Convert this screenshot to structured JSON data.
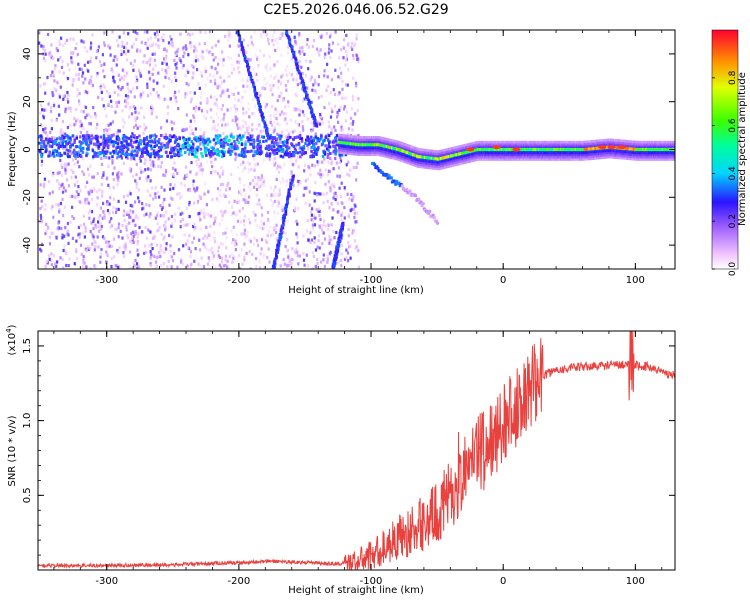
{
  "figure": {
    "title": "C2E5.2026.046.06.52.G29"
  },
  "chart_data": [
    {
      "type": "heatmap",
      "name": "spectrogram",
      "xlabel": "Height of straight line (km)",
      "ylabel": "Frequency (Hz)",
      "xlim": [
        -352,
        130
      ],
      "ylim": [
        -50,
        50
      ],
      "xticks": [
        -300,
        -200,
        -100,
        0,
        100
      ],
      "xtick_labels": [
        "-300",
        "-200",
        "-100",
        "0",
        "100"
      ],
      "yticks": [
        -40,
        -20,
        0,
        20,
        40
      ],
      "ytick_labels": [
        "-40",
        "-20",
        "0",
        "20",
        "40"
      ],
      "colorbar": {
        "label": "Normalized spectral amplitude",
        "range": [
          0,
          1
        ],
        "ticks": [
          0.0,
          0.2,
          0.4,
          0.6,
          0.8
        ],
        "tick_labels": [
          "0.0",
          "0.2",
          "0.4",
          "0.6",
          "0.8"
        ]
      },
      "main_tone": {
        "x": [
          -125,
          -110,
          -95,
          -80,
          -65,
          -50,
          -35,
          -20,
          0,
          20,
          40,
          60,
          80,
          100,
          130
        ],
        "y": [
          3,
          2,
          2,
          0,
          -3,
          -4,
          -2,
          0,
          0,
          0,
          0,
          0,
          1,
          0,
          0
        ],
        "peak_amplitude": 0.95
      },
      "noise_band_center_hz": 2,
      "descending_branch": {
        "x": [
          -100,
          -90,
          -80,
          -70,
          -60,
          -50
        ],
        "y": [
          -5,
          -10,
          -14,
          -18,
          -24,
          -30
        ]
      },
      "streaks": [
        {
          "x": [
            -202,
            -178
          ],
          "y": [
            50,
            5
          ]
        },
        {
          "x": [
            -165,
            -142
          ],
          "y": [
            50,
            10
          ]
        },
        {
          "x": [
            -175,
            -160
          ],
          "y": [
            -50,
            -10
          ]
        },
        {
          "x": [
            -130,
            -122
          ],
          "y": [
            -50,
            -30
          ]
        }
      ]
    },
    {
      "type": "line",
      "name": "snr",
      "xlabel": "Height of straight line (km)",
      "ylabel": "SNR (10 * v/v)",
      "scale_label": "(x10",
      "scale_exponent": "4",
      "xlim": [
        -352,
        130
      ],
      "ylim": [
        0,
        1.6
      ],
      "xticks": [
        -300,
        -200,
        -100,
        0,
        100
      ],
      "xtick_labels": [
        "-300",
        "-200",
        "-100",
        "0",
        "100"
      ],
      "yticks": [
        0.5,
        1.0,
        1.5
      ],
      "ytick_labels": [
        "0.5",
        "1.0",
        "1.5"
      ],
      "series": [
        {
          "name": "SNR",
          "color": "#e8413e",
          "x": [
            -352,
            -300,
            -250,
            -200,
            -175,
            -150,
            -125,
            -110,
            -100,
            -90,
            -80,
            -70,
            -60,
            -50,
            -40,
            -30,
            -20,
            -10,
            0,
            10,
            20,
            30,
            40,
            60,
            80,
            95,
            110,
            130
          ],
          "y": [
            0.03,
            0.03,
            0.035,
            0.05,
            0.06,
            0.05,
            0.04,
            0.06,
            0.1,
            0.15,
            0.22,
            0.25,
            0.32,
            0.38,
            0.5,
            0.65,
            0.75,
            0.85,
            0.95,
            1.1,
            1.22,
            1.3,
            1.34,
            1.36,
            1.37,
            1.38,
            1.36,
            1.3
          ]
        }
      ]
    }
  ]
}
